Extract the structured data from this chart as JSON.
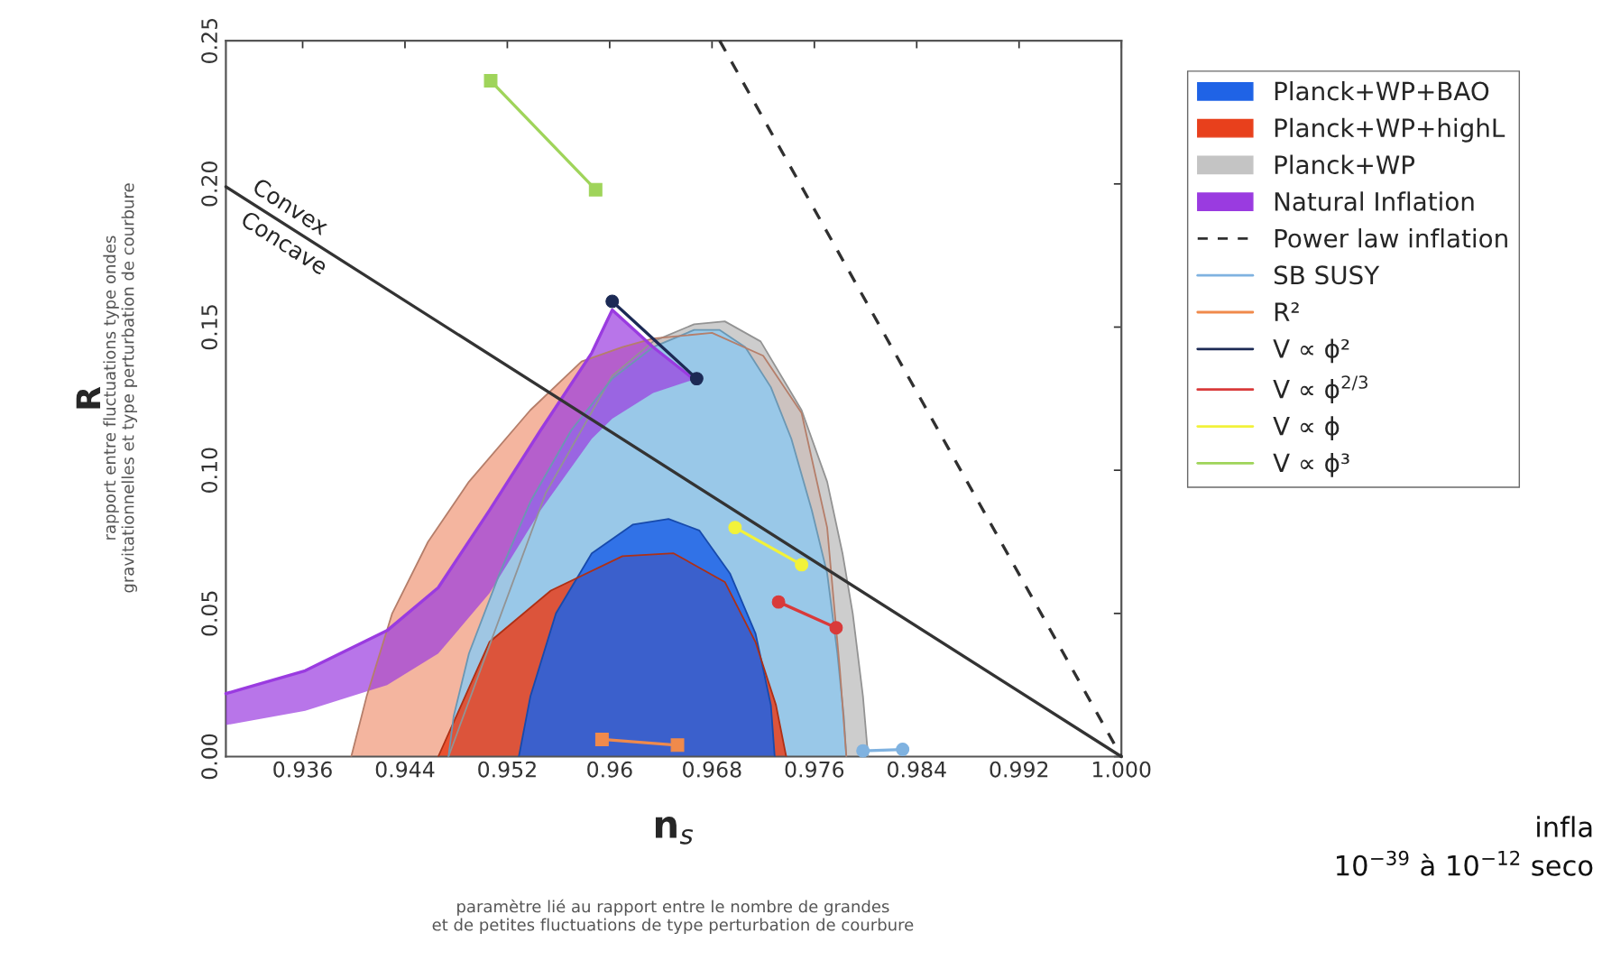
{
  "chart_data": {
    "type": "area",
    "xlabel": "n$_{s}$",
    "ylabel": "R",
    "xlim": [
      0.93,
      1.0
    ],
    "ylim": [
      0,
      0.25
    ],
    "xticks": [
      0.936,
      0.944,
      0.952,
      0.96,
      0.968,
      0.976,
      0.984,
      0.992,
      {
        "value": 1.0,
        "label": "1.000"
      }
    ],
    "yticks": [
      {
        "value": 0,
        "label": "0.00"
      },
      {
        "value": 0.05,
        "label": "0.05"
      },
      {
        "value": 0.1,
        "label": "0.10"
      },
      {
        "value": 0.15,
        "label": "0.15"
      },
      {
        "value": 0.2,
        "label": "0.20"
      },
      {
        "value": 0.25,
        "label": "0.25"
      }
    ],
    "legend": "right",
    "series": [
      {
        "name": "Planck+WP+BAO",
        "color": "#1f63e6",
        "x": [
          0.9529,
          0.9538,
          0.9558,
          0.9586,
          0.9618,
          0.9646,
          0.967,
          0.9694,
          0.9714,
          0.9726,
          0.9729
        ],
        "values": [
          0,
          0.021,
          0.05,
          0.071,
          0.081,
          0.083,
          0.079,
          0.064,
          0.043,
          0.018,
          0
        ]
      },
      {
        "name": "Planck+WP+highL",
        "color": "#e8401c",
        "x": [
          0.9466,
          0.9506,
          0.9554,
          0.961,
          0.965,
          0.969,
          0.9714,
          0.973,
          0.9738
        ],
        "values": [
          0,
          0.04,
          0.058,
          0.07,
          0.071,
          0.061,
          0.04,
          0.018,
          0
        ]
      },
      {
        "name": "Planck+WP",
        "color": "#c4c4c4",
        "x": [
          0.9474,
          0.955,
          0.9602,
          0.9634,
          0.9666,
          0.969,
          0.9718,
          0.975,
          0.977,
          0.9782,
          0.979,
          0.9798,
          0.9802
        ],
        "values": [
          0,
          0.092,
          0.133,
          0.145,
          0.151,
          0.152,
          0.145,
          0.121,
          0.096,
          0.071,
          0.05,
          0.021,
          0
        ]
      },
      {
        "name": "Natural Inflation",
        "type": "line",
        "line_style": "solid",
        "marker": "none",
        "color": "#9a3be0",
        "x": [
          0.93,
          0.9362,
          0.9426,
          0.9466,
          0.9506,
          0.9546,
          0.9586,
          0.9602,
          0.9634,
          0.9668
        ],
        "lower": [
          0.011,
          0.016,
          0.025,
          0.036,
          0.057,
          0.086,
          0.111,
          0.118,
          0.127,
          0.132
        ],
        "values": [
          0.022,
          0.03,
          0.044,
          0.059,
          0.086,
          0.114,
          0.141,
          0.156,
          0.143,
          0.131
        ],
        "upper": [
          0.022,
          0.03,
          0.044,
          0.059,
          0.086,
          0.114,
          0.141,
          0.156,
          0.143,
          0.131
        ]
      },
      {
        "name": "Power law inflation",
        "type": "line",
        "color": "#303030",
        "line_style": "dashed",
        "marker": "none",
        "x": [
          0.9686,
          1.0
        ],
        "values": [
          0.25,
          0
        ]
      },
      {
        "name": "SB SUSY",
        "type": "line",
        "color": "#7fb2e0",
        "line_style": "solid",
        "marker": "circle",
        "x": [
          0.9798,
          0.9829
        ],
        "values": [
          0.002,
          0.0025
        ]
      },
      {
        "name": "R²",
        "type": "line",
        "color": "#f08a4b",
        "line_style": "solid",
        "marker": "square",
        "x": [
          0.9594,
          0.9653
        ],
        "values": [
          0.006,
          0.004
        ]
      },
      {
        "name": "V ∝ ϕ²",
        "type": "line",
        "color": "#1c2a55",
        "line_style": "solid",
        "marker": "circle",
        "x": [
          0.9602,
          0.9668
        ],
        "values": [
          0.159,
          0.132
        ]
      },
      {
        "name": "V ∝ ϕ$^{2/3}$",
        "type": "line",
        "color": "#d93a3a",
        "line_style": "solid",
        "marker": "circle",
        "x": [
          0.9732,
          0.9777
        ],
        "values": [
          0.054,
          0.045
        ]
      },
      {
        "name": "V ∝ ϕ",
        "type": "line",
        "color": "#f2f23a",
        "line_style": "solid",
        "marker": "circle",
        "x": [
          0.9698,
          0.975
        ],
        "values": [
          0.08,
          0.067
        ]
      },
      {
        "name": "V ∝ ϕ³",
        "type": "line",
        "color": "#9fd45a",
        "line_style": "solid",
        "marker": "square",
        "x": [
          0.9507,
          0.9589
        ],
        "values": [
          0.236,
          0.198
        ]
      },
      {
        "color": "#8fc9ef",
        "x": [
          0.9474,
          0.9478,
          0.949,
          0.9514,
          0.9538,
          0.957,
          0.9602,
          0.9634,
          0.9666,
          0.9686,
          0.9706,
          0.9726,
          0.9742,
          0.9758,
          0.977,
          0.9778,
          0.9783,
          0.9785
        ],
        "values": [
          0,
          0.014,
          0.036,
          0.064,
          0.089,
          0.114,
          0.132,
          0.143,
          0.149,
          0.149,
          0.143,
          0.129,
          0.111,
          0.086,
          0.064,
          0.036,
          0.014,
          0
        ]
      },
      {
        "color": "#f2a88e",
        "x": [
          0.9398,
          0.941,
          0.943,
          0.9458,
          0.949,
          0.9538,
          0.9578,
          0.961,
          0.9634,
          0.968,
          0.972,
          0.975,
          0.977,
          0.978,
          0.9785
        ],
        "values": [
          0,
          0.021,
          0.05,
          0.075,
          0.096,
          0.121,
          0.138,
          0.143,
          0.146,
          0.148,
          0.14,
          0.12,
          0.08,
          0.03,
          0
        ]
      },
      {
        "type": "line",
        "color": "#333333",
        "line_style": "solid",
        "marker": "none",
        "x": [
          0.93,
          1.0
        ],
        "values": [
          0.199,
          0
        ]
      }
    ],
    "annotations": [
      "rapport entre fluctuations type ondes\ngravitationnelles et type perturbation de courbure",
      "paramètre lié au rapport entre le nombre de grandes\net de petites fluctuations de type perturbation de courbure",
      "infla",
      "10$^{−39}$ à 10$^{−12}$ seco",
      "Convex",
      "Concave"
    ]
  }
}
